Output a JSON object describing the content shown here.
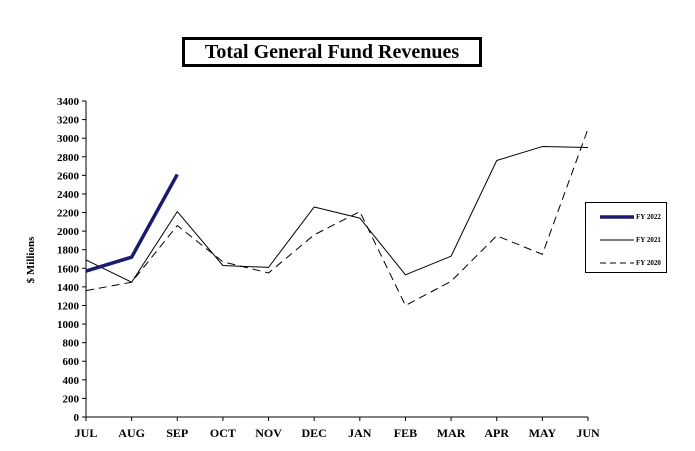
{
  "chart_data": {
    "type": "line",
    "title": "Total General Fund Revenues",
    "ylabel": "$ Millions",
    "xlabel": "",
    "categories": [
      "JUL",
      "AUG",
      "SEP",
      "OCT",
      "NOV",
      "DEC",
      "JAN",
      "FEB",
      "MAR",
      "APR",
      "MAY",
      "JUN"
    ],
    "ylim": [
      0,
      3400
    ],
    "yticks": [
      0,
      200,
      400,
      600,
      800,
      1000,
      1200,
      1400,
      1600,
      1800,
      2000,
      2200,
      2400,
      2600,
      2800,
      3000,
      3200,
      3400
    ],
    "grid": false,
    "legend_position": "right",
    "series": [
      {
        "name": "FY 2022",
        "style": "bold",
        "color": "#1a1a6e",
        "values": [
          1570,
          1720,
          2610,
          null,
          null,
          null,
          null,
          null,
          null,
          null,
          null,
          null
        ]
      },
      {
        "name": "FY 2021",
        "style": "solid",
        "color": "#000000",
        "values": [
          1690,
          1450,
          2210,
          1630,
          1610,
          2260,
          2140,
          1530,
          1730,
          2760,
          2910,
          2900
        ]
      },
      {
        "name": "FY 2020",
        "style": "dashed",
        "color": "#000000",
        "values": [
          1360,
          1450,
          2060,
          1670,
          1550,
          1960,
          2210,
          1200,
          1460,
          1950,
          1750,
          3100
        ]
      }
    ]
  }
}
